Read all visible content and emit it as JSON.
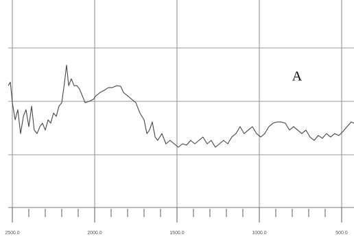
{
  "chart_data": {
    "type": "line",
    "annotation": "A",
    "x": [
      2525,
      2512,
      2500,
      2483,
      2467,
      2450,
      2433,
      2417,
      2400,
      2383,
      2367,
      2350,
      2333,
      2317,
      2300,
      2283,
      2267,
      2250,
      2233,
      2217,
      2200,
      2183,
      2171,
      2158,
      2142,
      2125,
      2108,
      2092,
      2075,
      2058,
      2033,
      2008,
      1992,
      1967,
      1942,
      1917,
      1892,
      1867,
      1842,
      1825,
      1800,
      1775,
      1750,
      1725,
      1700,
      1683,
      1667,
      1650,
      1633,
      1617,
      1592,
      1567,
      1542,
      1517,
      1492,
      1467,
      1442,
      1417,
      1392,
      1367,
      1342,
      1317,
      1292,
      1267,
      1242,
      1217,
      1192,
      1167,
      1142,
      1117,
      1092,
      1067,
      1042,
      1017,
      992,
      967,
      942,
      917,
      892,
      867,
      842,
      817,
      792,
      767,
      742,
      717,
      692,
      667,
      642,
      617,
      592,
      567,
      542,
      517,
      492,
      467,
      442,
      425
    ],
    "series": [
      {
        "color": "#444444",
        "values": [
          57.4,
          59.0,
          49.4,
          41.3,
          46.1,
          34.8,
          42.9,
          46.1,
          38.1,
          47.7,
          36.5,
          34.8,
          38.1,
          39.7,
          36.5,
          41.3,
          39.7,
          44.5,
          42.9,
          47.7,
          49.4,
          59.0,
          67.1,
          57.4,
          60.6,
          57.4,
          57.4,
          55.8,
          52.6,
          49.4,
          50.0,
          51.0,
          52.6,
          54.2,
          55.2,
          56.5,
          56.5,
          57.4,
          57.1,
          54.2,
          52.6,
          51.0,
          49.4,
          44.5,
          41.3,
          34.8,
          36.5,
          40.3,
          33.2,
          31.6,
          34.8,
          30.0,
          31.6,
          30.0,
          28.4,
          30.0,
          29.4,
          31.6,
          30.0,
          31.6,
          33.2,
          30.0,
          31.6,
          28.4,
          30.0,
          31.6,
          30.0,
          33.2,
          34.8,
          38.1,
          34.8,
          36.5,
          38.1,
          34.8,
          33.2,
          34.8,
          38.1,
          39.7,
          40.3,
          40.3,
          39.7,
          36.5,
          38.1,
          36.5,
          34.8,
          36.5,
          33.2,
          31.6,
          33.9,
          32.6,
          34.8,
          33.2,
          34.8,
          33.9,
          35.8,
          38.1,
          40.3,
          39.7
        ]
      }
    ],
    "xlim": [
      2525,
      425
    ],
    "ylim": [
      0,
      100
    ],
    "xticks": [
      {
        "value": 2500,
        "label": "2500.0"
      },
      {
        "value": 2000,
        "label": "2000.0"
      },
      {
        "value": 1500,
        "label": "1500.0"
      },
      {
        "value": 1000,
        "label": "1000.0"
      },
      {
        "value": 500,
        "label": "500.0"
      }
    ],
    "grid": true
  }
}
